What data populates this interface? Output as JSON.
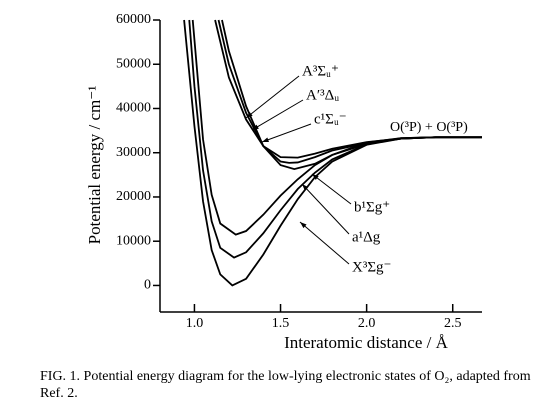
{
  "chart_data": {
    "type": "line",
    "xlabel": "Interatomic distance / Å",
    "ylabel": "Potential energy / cm⁻¹",
    "annotation": "O(³P) + O(³P)",
    "caption": "FIG. 1. Potential energy diagram for the low-lying electronic states of O₂, adapted from Ref. 2.",
    "xlim": [
      0.8,
      2.67
    ],
    "ylim": [
      -6000,
      60000
    ],
    "xticks": [
      {
        "value": 1,
        "label": "1.0"
      },
      {
        "value": 1.5,
        "label": "1.5"
      },
      {
        "value": 2,
        "label": "2.0"
      },
      {
        "value": 2.5,
        "label": "2.5"
      }
    ],
    "yticks": [
      0,
      10000,
      20000,
      30000,
      40000,
      50000,
      60000
    ],
    "color": "#000000",
    "series": [
      {
        "name": "A³Σᵤ⁺",
        "x": [
          1.12,
          1.2,
          1.3,
          1.4,
          1.5,
          1.6,
          1.7,
          1.8,
          2.0,
          2.2,
          2.4,
          2.67
        ],
        "values": [
          60000,
          47000,
          37500,
          31500,
          29000,
          28900,
          29800,
          30900,
          32400,
          33200,
          33500,
          33500
        ]
      },
      {
        "name": "A′³Δᵤ",
        "x": [
          1.14,
          1.2,
          1.3,
          1.4,
          1.5,
          1.55,
          1.6,
          1.7,
          1.8,
          2.0,
          2.2,
          2.4,
          2.67
        ],
        "values": [
          60000,
          50000,
          39000,
          31500,
          28000,
          27700,
          27800,
          29000,
          30500,
          32200,
          33200,
          33500,
          33500
        ]
      },
      {
        "name": "c¹Σᵤ⁻",
        "x": [
          1.16,
          1.2,
          1.3,
          1.4,
          1.5,
          1.58,
          1.7,
          1.8,
          2.0,
          2.2,
          2.4,
          2.67
        ],
        "values": [
          60000,
          53000,
          40500,
          31500,
          27200,
          26300,
          27500,
          29500,
          32000,
          33200,
          33500,
          33500
        ]
      },
      {
        "name": "b¹Σg⁺",
        "x": [
          0.99,
          1.05,
          1.1,
          1.15,
          1.24,
          1.3,
          1.4,
          1.5,
          1.6,
          1.7,
          1.8,
          2.0,
          2.2,
          2.4,
          2.67
        ],
        "values": [
          60000,
          33000,
          20500,
          14000,
          11500,
          12300,
          16000,
          20300,
          24000,
          27200,
          29500,
          32300,
          33300,
          33500,
          33500
        ]
      },
      {
        "name": "a¹Δg",
        "x": [
          0.97,
          1.0,
          1.05,
          1.1,
          1.15,
          1.23,
          1.3,
          1.4,
          1.5,
          1.6,
          1.7,
          1.8,
          2.0,
          2.2,
          2.4,
          2.67
        ],
        "values": [
          60000,
          45000,
          26000,
          14500,
          8500,
          6300,
          7500,
          11800,
          17000,
          21800,
          25500,
          28500,
          31900,
          33300,
          33500,
          33500
        ]
      },
      {
        "name": "X³Σg⁻",
        "x": [
          0.94,
          1.0,
          1.05,
          1.1,
          1.15,
          1.22,
          1.3,
          1.4,
          1.5,
          1.6,
          1.7,
          1.8,
          2.0,
          2.2,
          2.4,
          2.67
        ],
        "values": [
          60000,
          36000,
          19000,
          8000,
          2500,
          0,
          1500,
          7000,
          13500,
          19500,
          24500,
          28000,
          31800,
          33200,
          33500,
          33500
        ]
      }
    ]
  }
}
